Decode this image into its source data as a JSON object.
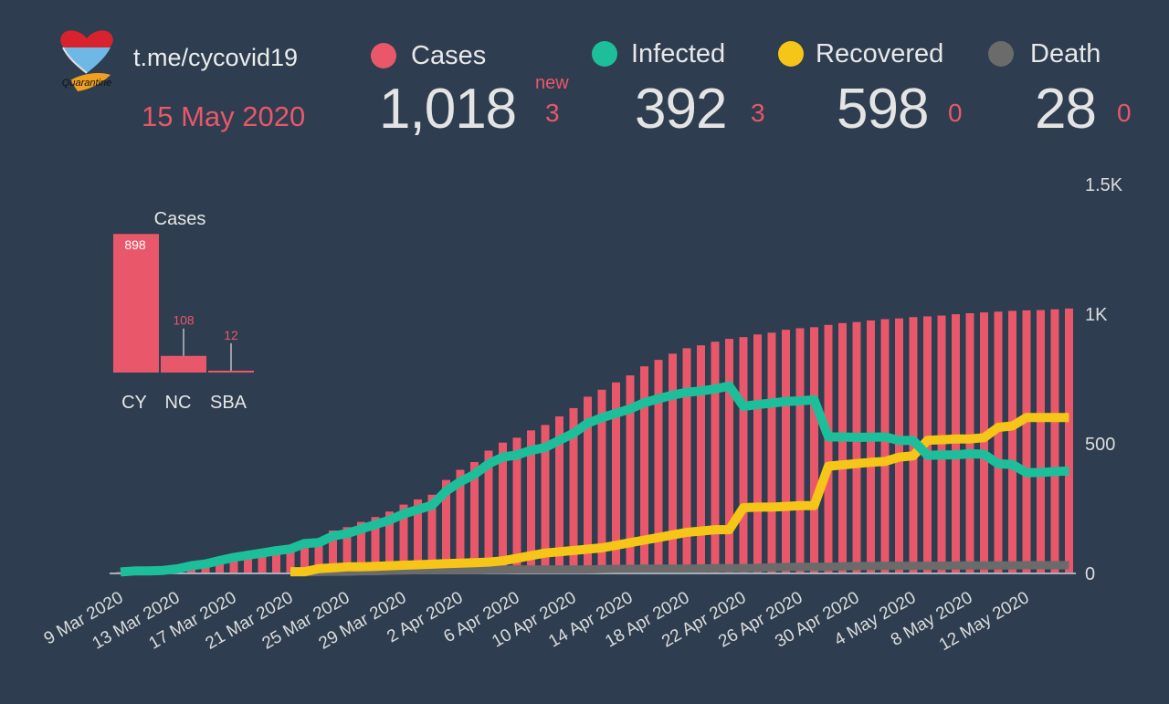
{
  "header": {
    "logo_text": "Quarantine",
    "channel": "t.me/cycovid19",
    "date": "15 May 2020",
    "new_label": "new",
    "stats": [
      {
        "name": "Cases",
        "value": "1,018",
        "new": "3",
        "color": "#e8586a"
      },
      {
        "name": "Infected",
        "value": "392",
        "new": "3",
        "color": "#1dbf9b"
      },
      {
        "name": "Recovered",
        "value": "598",
        "new": "0",
        "color": "#f5c518"
      },
      {
        "name": "Death",
        "value": "28",
        "new": "0",
        "color": "#6b6b6b"
      }
    ]
  },
  "chart_data": [
    {
      "type": "bar+line",
      "title": "",
      "y_ticks": [
        "0",
        "500",
        "1K",
        "1.5K"
      ],
      "ylim": [
        0,
        1500
      ],
      "x_tick_labels": [
        "9 Mar 2020",
        "13 Mar 2020",
        "17 Mar 2020",
        "21 Mar 2020",
        "25 Mar 2020",
        "29 Mar 2020",
        "2 Apr 2020",
        "6 Apr 2020",
        "10 Apr 2020",
        "14 Apr 2020",
        "18 Apr 2020",
        "22 Apr 2020",
        "26 Apr 2020",
        "30 Apr 2020",
        "4 May 2020",
        "8 May 2020",
        "12 May 2020"
      ],
      "x_start": "9 Mar 2020",
      "x_end": "15 May 2020",
      "series": [
        {
          "name": "Cases",
          "type": "bar",
          "color": "#e8586a",
          "values": [
            2,
            6,
            6,
            8,
            14,
            26,
            33,
            46,
            58,
            67,
            75,
            84,
            95,
            116,
            132,
            162,
            175,
            195,
            214,
            235,
            262,
            282,
            300,
            357,
            396,
            426,
            470,
            501,
            520,
            548,
            569,
            602,
            634,
            678,
            705,
            733,
            760,
            795,
            820,
            844,
            865,
            876,
            890,
            901,
            908,
            918,
            925,
            936,
            942,
            946,
            955,
            962,
            966,
            972,
            977,
            980,
            985,
            988,
            991,
            996,
            1000,
            1003,
            1006,
            1009,
            1011,
            1012,
            1015,
            1018
          ]
        },
        {
          "name": "Infected",
          "type": "line",
          "color": "#1dbf9b",
          "values": [
            2,
            6,
            6,
            8,
            14,
            26,
            33,
            46,
            58,
            67,
            75,
            84,
            91,
            112,
            115,
            141,
            150,
            168,
            185,
            202,
            226,
            243,
            259,
            314,
            350,
            378,
            419,
            445,
            453,
            471,
            482,
            510,
            537,
            576,
            597,
            614,
            631,
            655,
            670,
            684,
            695,
            700,
            708,
            719,
            641,
            648,
            653,
            660,
            662,
            666,
            523,
            523,
            521,
            522,
            523,
            509,
            509,
            452,
            453,
            454,
            458,
            456,
            419,
            417,
            385,
            386,
            389,
            392
          ]
        },
        {
          "name": "Recovered",
          "type": "line",
          "color": "#f5c518",
          "values": [
            null,
            null,
            null,
            null,
            null,
            null,
            null,
            null,
            null,
            null,
            null,
            null,
            3,
            3,
            15,
            18,
            22,
            22,
            24,
            26,
            28,
            30,
            32,
            34,
            36,
            38,
            40,
            45,
            55,
            65,
            75,
            80,
            85,
            90,
            95,
            105,
            115,
            125,
            135,
            145,
            155,
            160,
            165,
            165,
            250,
            252,
            252,
            255,
            258,
            258,
            410,
            415,
            420,
            425,
            428,
            445,
            450,
            510,
            512,
            515,
            515,
            520,
            560,
            565,
            598,
            598,
            598,
            598
          ]
        },
        {
          "name": "Death",
          "type": "line",
          "color": "#6b6b6b",
          "values": [
            null,
            null,
            null,
            null,
            null,
            null,
            null,
            null,
            null,
            null,
            null,
            null,
            1,
            1,
            2,
            3,
            3,
            5,
            5,
            7,
            8,
            9,
            9,
            9,
            10,
            10,
            11,
            11,
            12,
            12,
            12,
            12,
            12,
            12,
            13,
            14,
            14,
            15,
            15,
            15,
            15,
            16,
            17,
            17,
            17,
            18,
            20,
            21,
            22,
            22,
            22,
            24,
            25,
            25,
            26,
            26,
            26,
            26,
            26,
            27,
            27,
            27,
            27,
            27,
            28,
            28,
            28,
            28
          ]
        }
      ]
    },
    {
      "type": "bar",
      "title": "Cases",
      "categories": [
        "CY",
        "NC",
        "SBA"
      ],
      "values": [
        898,
        108,
        12
      ],
      "value_labels": [
        "898",
        "108",
        "12"
      ],
      "color": "#e8586a"
    }
  ]
}
